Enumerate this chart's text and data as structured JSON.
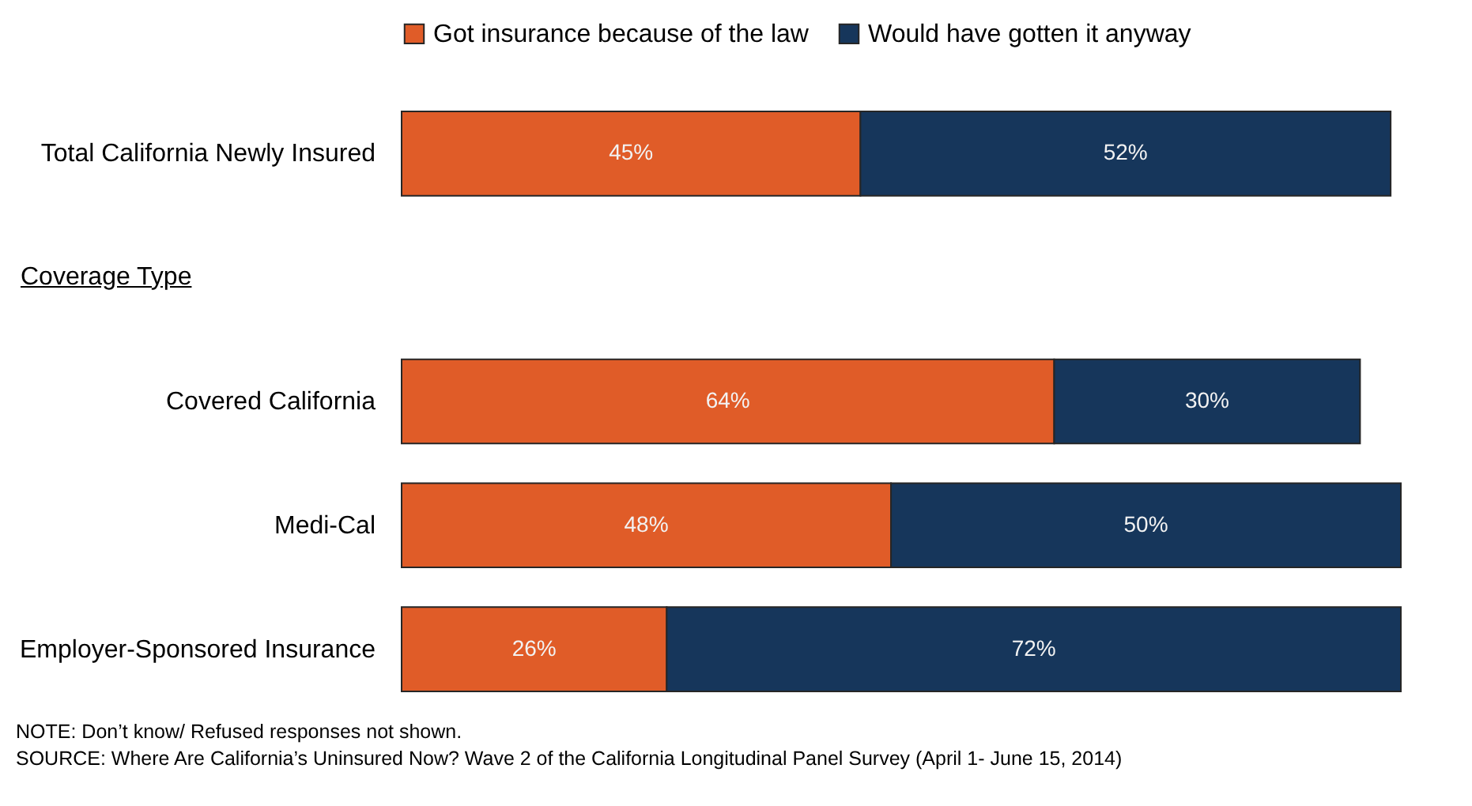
{
  "chart_data": {
    "type": "bar",
    "orientation": "horizontal",
    "stacked": true,
    "categories": [
      "Total California Newly Insured",
      null,
      "Covered California",
      "Medi-Cal",
      "Employer-Sponsored Insurance"
    ],
    "series": [
      {
        "name": "Got insurance because of the law",
        "color": "#e05c28",
        "values": [
          45,
          null,
          64,
          48,
          26
        ],
        "value_labels": [
          "45%",
          null,
          "64%",
          "48%",
          "26%"
        ]
      },
      {
        "name": "Would have gotten it anyway",
        "color": "#16365b",
        "values": [
          52,
          null,
          30,
          50,
          72
        ],
        "value_labels": [
          "52%",
          null,
          "30%",
          "50%",
          "72%"
        ]
      }
    ],
    "legend": "top",
    "tick_labels": "y",
    "annotations": [
      "Coverage Type",
      "NOTE: Don’t know/ Refused responses not shown.",
      "SOURCE: Where Are California’s Uninsured Now? Wave 2 of the California Longitudinal Panel Survey (April 1- June 15, 2014)"
    ]
  }
}
